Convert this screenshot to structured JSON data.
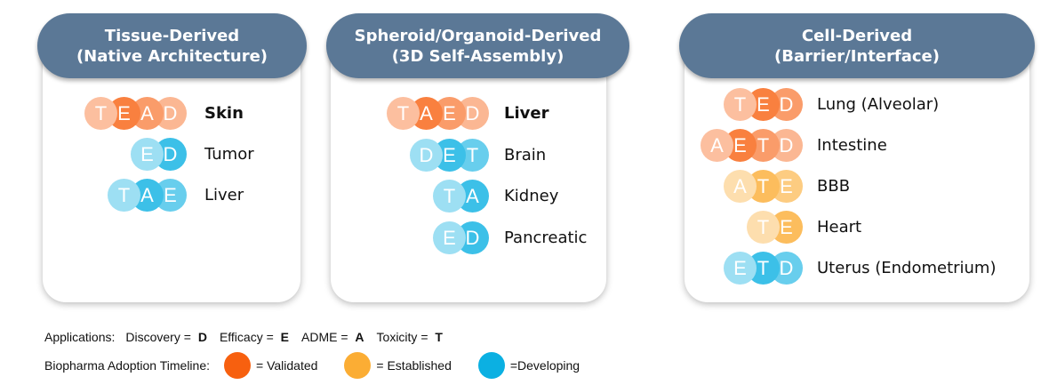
{
  "colors": {
    "validated": "#f7600f",
    "established": "#fbad34",
    "developing": "#0bb0e2",
    "header": "#5b7896"
  },
  "panels": [
    {
      "title_line1": "Tissue-Derived",
      "title_line2": "(Native Architecture)",
      "items": [
        {
          "letters": [
            "T",
            "E",
            "A",
            "D"
          ],
          "label": "Skin",
          "status": "validated",
          "bold": true
        },
        {
          "letters": [
            "E",
            "D"
          ],
          "label": "Tumor",
          "status": "developing",
          "bold": false
        },
        {
          "letters": [
            "T",
            "A",
            "E"
          ],
          "label": "Liver",
          "status": "developing",
          "bold": false
        }
      ]
    },
    {
      "title_line1": "Spheroid/Organoid-Derived",
      "title_line2": "(3D Self-Assembly)",
      "items": [
        {
          "letters": [
            "T",
            "A",
            "E",
            "D"
          ],
          "label": "Liver",
          "status": "validated",
          "bold": true
        },
        {
          "letters": [
            "D",
            "E",
            "T"
          ],
          "label": "Brain",
          "status": "developing",
          "bold": false
        },
        {
          "letters": [
            "T",
            "A"
          ],
          "label": "Kidney",
          "status": "developing",
          "bold": false
        },
        {
          "letters": [
            "E",
            "D"
          ],
          "label": "Pancreatic",
          "status": "developing",
          "bold": false
        }
      ]
    },
    {
      "title_line1": "Cell-Derived",
      "title_line2": "(Barrier/Interface)",
      "items": [
        {
          "letters": [
            "T",
            "E",
            "D"
          ],
          "label": "Lung (Alveolar)",
          "status": "validated",
          "bold": false
        },
        {
          "letters": [
            "A",
            "E",
            "T",
            "D"
          ],
          "label": "Intestine",
          "status": "validated",
          "bold": false
        },
        {
          "letters": [
            "A",
            "T",
            "E"
          ],
          "label": "BBB",
          "status": "established",
          "bold": false
        },
        {
          "letters": [
            "T",
            "E"
          ],
          "label": "Heart",
          "status": "established",
          "bold": false
        },
        {
          "letters": [
            "E",
            "T",
            "D"
          ],
          "label": "Uterus (Endometrium)",
          "status": "developing",
          "bold": false
        }
      ]
    }
  ],
  "legend": {
    "applications_label": "Applications:",
    "apps": [
      {
        "name": "Discovery = ",
        "code": "D"
      },
      {
        "name": "Efficacy = ",
        "code": "E"
      },
      {
        "name": "ADME = ",
        "code": "A"
      },
      {
        "name": "Toxicity = ",
        "code": "T"
      }
    ],
    "timeline_label": "Biopharma Adoption Timeline:",
    "timeline": [
      {
        "status": "validated",
        "label": "= Validated"
      },
      {
        "status": "established",
        "label": "= Established"
      },
      {
        "status": "developing",
        "label": "=Developing"
      }
    ]
  }
}
